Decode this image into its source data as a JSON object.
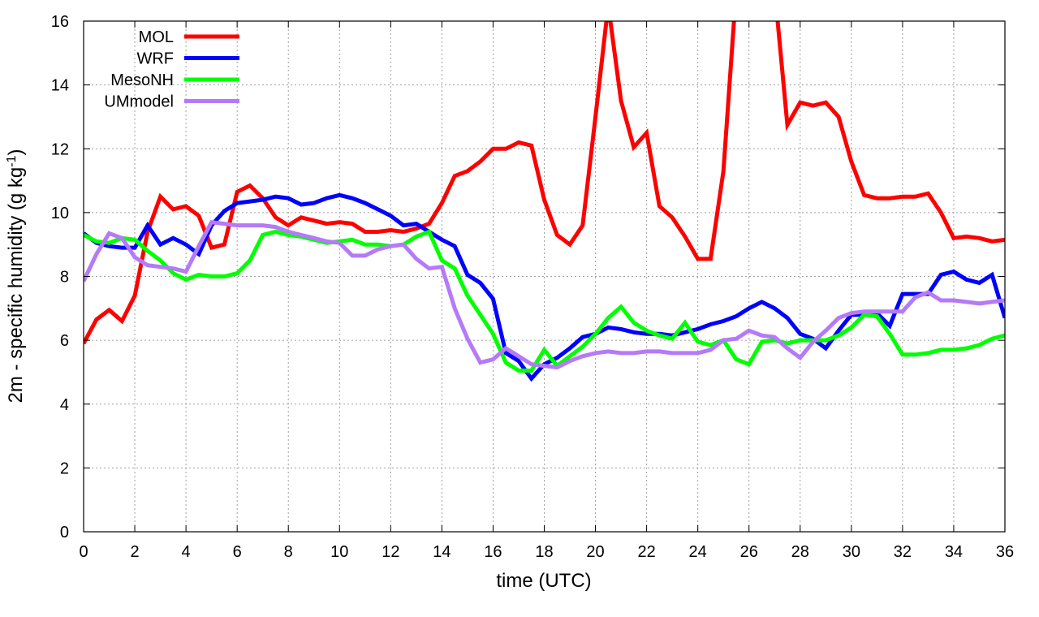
{
  "chart_data": {
    "type": "line",
    "xlabel": "time (UTC)",
    "ylabel_main": "2m - specific humidity (g kg",
    "ylabel_sup": "-1",
    "ylabel_end": ")",
    "xlim": [
      0,
      36
    ],
    "ylim": [
      0,
      16
    ],
    "xticks": [
      0,
      2,
      4,
      6,
      8,
      10,
      12,
      14,
      16,
      18,
      20,
      22,
      24,
      26,
      28,
      30,
      32,
      34,
      36
    ],
    "yticks": [
      0,
      2,
      4,
      6,
      8,
      10,
      12,
      14,
      16
    ],
    "grid": true,
    "legend_position": "top-left",
    "series": [
      {
        "name": "MOL",
        "color": "#ff0000",
        "x": [
          0,
          0.5,
          1,
          1.5,
          2,
          2.5,
          3,
          3.5,
          4,
          4.5,
          5,
          5.5,
          6,
          6.5,
          7,
          7.5,
          8,
          8.5,
          9,
          9.5,
          10,
          10.5,
          11,
          11.5,
          12,
          12.5,
          13,
          13.5,
          14,
          14.5,
          15,
          15.5,
          16,
          16.5,
          17,
          17.5,
          18,
          18.5,
          19,
          19.5,
          20,
          20.5,
          21,
          21.5,
          22,
          22.5,
          23,
          23.5,
          24,
          24.5,
          25,
          25.5,
          26,
          26.5,
          27,
          27.5,
          28,
          28.5,
          29,
          29.5,
          30,
          30.5,
          31,
          31.5,
          32,
          32.5,
          33,
          33.5,
          34,
          34.5,
          35,
          35.5,
          36
        ],
        "values": [
          5.9,
          6.65,
          6.95,
          6.6,
          7.4,
          9.4,
          10.5,
          10.1,
          10.2,
          9.9,
          8.9,
          9.0,
          10.65,
          10.85,
          10.45,
          9.85,
          9.6,
          9.85,
          9.75,
          9.65,
          9.7,
          9.65,
          9.4,
          9.4,
          9.45,
          9.4,
          9.5,
          9.65,
          10.3,
          11.15,
          11.3,
          11.6,
          12.0,
          12.0,
          12.2,
          12.1,
          10.4,
          9.3,
          9.0,
          9.6,
          13.0,
          16.5,
          13.5,
          12.05,
          12.5,
          10.2,
          9.85,
          9.25,
          8.55,
          8.55,
          11.3,
          17.0,
          17.0,
          17.0,
          17.0,
          12.75,
          13.45,
          13.35,
          13.45,
          13.0,
          11.6,
          10.55,
          10.45,
          10.45,
          10.5,
          10.5,
          10.6,
          10.0,
          9.2,
          9.25,
          9.2,
          9.1,
          9.15
        ]
      },
      {
        "name": "WRF",
        "color": "#0000ff",
        "x": [
          0,
          0.5,
          1,
          1.5,
          2,
          2.5,
          3,
          3.5,
          4,
          4.5,
          5,
          5.5,
          6,
          6.5,
          7,
          7.5,
          8,
          8.5,
          9,
          9.5,
          10,
          10.5,
          11,
          11.5,
          12,
          12.5,
          13,
          13.5,
          14,
          14.5,
          15,
          15.5,
          16,
          16.5,
          17,
          17.5,
          18,
          18.5,
          19,
          19.5,
          20,
          20.5,
          21,
          21.5,
          22,
          22.5,
          23,
          23.5,
          24,
          24.5,
          25,
          25.5,
          26,
          26.5,
          27,
          27.5,
          28,
          28.5,
          29,
          29.5,
          30,
          30.5,
          31,
          31.5,
          32,
          32.5,
          33,
          33.5,
          34,
          34.5,
          35,
          35.5,
          36
        ],
        "values": [
          9.35,
          9.05,
          8.95,
          8.9,
          8.9,
          9.6,
          9.0,
          9.2,
          9.0,
          8.7,
          9.6,
          10.05,
          10.3,
          10.35,
          10.4,
          10.5,
          10.45,
          10.25,
          10.3,
          10.45,
          10.55,
          10.45,
          10.3,
          10.1,
          9.9,
          9.6,
          9.65,
          9.4,
          9.15,
          8.95,
          8.05,
          7.8,
          7.3,
          5.6,
          5.35,
          4.8,
          5.25,
          5.45,
          5.75,
          6.1,
          6.2,
          6.4,
          6.35,
          6.25,
          6.2,
          6.2,
          6.15,
          6.25,
          6.35,
          6.5,
          6.6,
          6.75,
          7.0,
          7.2,
          7.0,
          6.7,
          6.2,
          6.05,
          5.75,
          6.3,
          6.8,
          6.8,
          6.85,
          6.45,
          7.45,
          7.45,
          7.45,
          8.05,
          8.15,
          7.9,
          7.8,
          8.05,
          6.7
        ]
      },
      {
        "name": "MesoNH",
        "color": "#00ff00",
        "x": [
          0,
          0.5,
          1,
          1.5,
          2,
          2.5,
          3,
          3.5,
          4,
          4.5,
          5,
          5.5,
          6,
          6.5,
          7,
          7.5,
          8,
          8.5,
          9,
          9.5,
          10,
          10.5,
          11,
          11.5,
          12,
          12.5,
          13,
          13.5,
          14,
          14.5,
          15,
          15.5,
          16,
          16.5,
          17,
          17.5,
          18,
          18.5,
          19,
          19.5,
          20,
          20.5,
          21,
          21.5,
          22,
          22.5,
          23,
          23.5,
          24,
          24.5,
          25,
          25.5,
          26,
          26.5,
          27,
          27.5,
          28,
          28.5,
          29,
          29.5,
          30,
          30.5,
          31,
          31.5,
          32,
          32.5,
          33,
          33.5,
          34,
          34.5,
          35,
          35.5,
          36
        ],
        "values": [
          9.3,
          9.1,
          9.05,
          9.2,
          9.15,
          8.8,
          8.5,
          8.1,
          7.9,
          8.05,
          8.0,
          8.0,
          8.1,
          8.5,
          9.3,
          9.4,
          9.3,
          9.25,
          9.15,
          9.05,
          9.1,
          9.15,
          9.0,
          9.0,
          8.95,
          9.0,
          9.25,
          9.4,
          8.5,
          8.25,
          7.4,
          6.8,
          6.2,
          5.3,
          5.05,
          5.05,
          5.7,
          5.2,
          5.5,
          5.8,
          6.2,
          6.7,
          7.05,
          6.55,
          6.3,
          6.15,
          6.05,
          6.55,
          5.95,
          5.85,
          6.0,
          5.4,
          5.25,
          5.95,
          6.0,
          5.9,
          6.0,
          6.0,
          6.0,
          6.15,
          6.4,
          6.8,
          6.75,
          6.2,
          5.55,
          5.55,
          5.6,
          5.7,
          5.7,
          5.75,
          5.85,
          6.05,
          6.15
        ]
      },
      {
        "name": "UMmodel",
        "color": "#b57af7",
        "x": [
          0,
          0.5,
          1,
          1.5,
          2,
          2.5,
          3,
          3.5,
          4,
          4.5,
          5,
          5.5,
          6,
          6.5,
          7,
          7.5,
          8,
          8.5,
          9,
          9.5,
          10,
          10.5,
          11,
          11.5,
          12,
          12.5,
          13,
          13.5,
          14,
          14.5,
          15,
          15.5,
          16,
          16.5,
          17,
          17.5,
          18,
          18.5,
          19,
          19.5,
          20,
          20.5,
          21,
          21.5,
          22,
          22.5,
          23,
          23.5,
          24,
          24.5,
          25,
          25.5,
          26,
          26.5,
          27,
          27.5,
          28,
          28.5,
          29,
          29.5,
          30,
          30.5,
          31,
          31.5,
          32,
          32.5,
          33,
          33.5,
          34,
          34.5,
          35,
          35.5,
          36
        ],
        "values": [
          7.85,
          8.7,
          9.35,
          9.2,
          8.6,
          8.35,
          8.3,
          8.25,
          8.15,
          8.95,
          9.7,
          9.65,
          9.6,
          9.6,
          9.6,
          9.55,
          9.4,
          9.3,
          9.2,
          9.1,
          9.05,
          8.65,
          8.65,
          8.85,
          8.95,
          9.0,
          8.55,
          8.25,
          8.3,
          7.0,
          6.05,
          5.3,
          5.4,
          5.75,
          5.5,
          5.25,
          5.2,
          5.15,
          5.35,
          5.5,
          5.6,
          5.65,
          5.6,
          5.6,
          5.65,
          5.65,
          5.6,
          5.6,
          5.6,
          5.7,
          6.0,
          6.05,
          6.3,
          6.15,
          6.1,
          5.75,
          5.45,
          5.95,
          6.3,
          6.7,
          6.85,
          6.9,
          6.9,
          6.9,
          6.9,
          7.35,
          7.5,
          7.25,
          7.25,
          7.2,
          7.15,
          7.2,
          7.25
        ]
      }
    ]
  }
}
